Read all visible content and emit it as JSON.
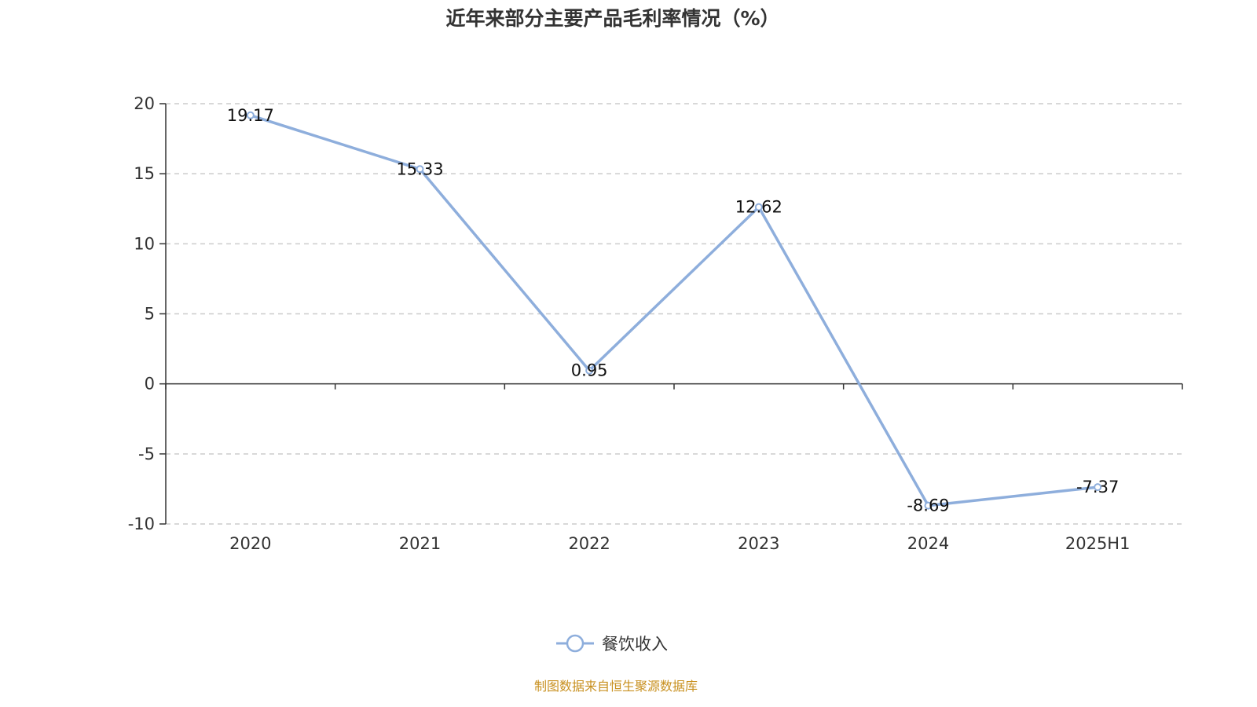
{
  "chart_data": {
    "type": "line",
    "title": "近年来部分主要产品毛利率情况（%）",
    "categories": [
      "2020",
      "2021",
      "2022",
      "2023",
      "2024",
      "2025H1"
    ],
    "series": [
      {
        "name": "餐饮收入",
        "values": [
          19.17,
          15.33,
          0.95,
          12.62,
          -8.69,
          -7.37
        ],
        "color": "#8eaedc"
      }
    ],
    "data_labels": [
      "19.17",
      "15.33",
      "0.95",
      "12.62",
      "-8.69",
      "-7.37"
    ],
    "ylim": [
      -10,
      20
    ],
    "yticks": [
      20,
      15,
      10,
      5,
      0,
      -5,
      -10
    ],
    "grid": true,
    "legend_position": "bottom",
    "xlabel": "",
    "ylabel": ""
  },
  "source": "制图数据来自恒生聚源数据库"
}
